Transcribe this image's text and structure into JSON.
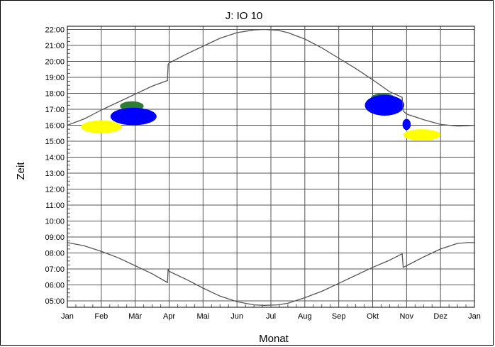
{
  "chart_data": {
    "type": "line",
    "title": "J: IO 10",
    "xlabel": "Monat",
    "ylabel": "Zeit",
    "x_ticks": [
      "Jan",
      "Feb",
      "Mär",
      "Apr",
      "Mai",
      "Jun",
      "Jul",
      "Aug",
      "Sep",
      "Okt",
      "Nov",
      "Dez",
      "Jan"
    ],
    "y_ticks": [
      "05:00",
      "06:00",
      "07:00",
      "08:00",
      "09:00",
      "10:00",
      "11:00",
      "12:00",
      "13:00",
      "14:00",
      "15:00",
      "16:00",
      "17:00",
      "18:00",
      "19:00",
      "20:00",
      "21:00",
      "22:00"
    ],
    "xlim": [
      0,
      12
    ],
    "ylim": [
      4.6,
      22.2
    ],
    "grid": true,
    "legend": "none",
    "series": [
      {
        "color": "#555555",
        "points": [
          [
            0,
            16.0
          ],
          [
            0.5,
            16.4
          ],
          [
            1,
            16.95
          ],
          [
            1.5,
            17.45
          ],
          [
            2,
            17.95
          ],
          [
            2.5,
            18.45
          ],
          [
            2.95,
            18.8
          ],
          [
            2.97,
            19.8
          ],
          [
            3,
            19.9
          ],
          [
            3.5,
            20.45
          ],
          [
            4,
            20.95
          ],
          [
            4.5,
            21.45
          ],
          [
            5,
            21.8
          ],
          [
            5.5,
            21.97
          ],
          [
            5.8,
            22.0
          ],
          [
            6.2,
            21.95
          ],
          [
            6.5,
            21.8
          ],
          [
            7,
            21.4
          ],
          [
            7.5,
            20.85
          ],
          [
            8,
            20.2
          ],
          [
            8.5,
            19.55
          ],
          [
            9,
            18.85
          ],
          [
            9.5,
            18.1
          ],
          [
            9.87,
            17.75
          ],
          [
            9.9,
            16.9
          ],
          [
            10,
            16.7
          ],
          [
            10.5,
            16.35
          ],
          [
            11,
            16.05
          ],
          [
            11.5,
            15.95
          ],
          [
            11.8,
            15.97
          ],
          [
            12,
            16.0
          ]
        ]
      },
      {
        "color": "#555555",
        "points": [
          [
            0,
            8.65
          ],
          [
            0.5,
            8.45
          ],
          [
            1,
            8.1
          ],
          [
            1.5,
            7.7
          ],
          [
            2,
            7.2
          ],
          [
            2.5,
            6.7
          ],
          [
            2.95,
            6.15
          ],
          [
            2.97,
            7.0
          ],
          [
            3,
            6.85
          ],
          [
            3.5,
            6.35
          ],
          [
            4,
            5.8
          ],
          [
            4.5,
            5.3
          ],
          [
            5,
            4.95
          ],
          [
            5.5,
            4.75
          ],
          [
            5.8,
            4.72
          ],
          [
            6.2,
            4.75
          ],
          [
            6.5,
            4.85
          ],
          [
            7,
            5.2
          ],
          [
            7.5,
            5.6
          ],
          [
            8,
            6.1
          ],
          [
            8.5,
            6.6
          ],
          [
            9,
            7.1
          ],
          [
            9.5,
            7.55
          ],
          [
            9.87,
            7.95
          ],
          [
            9.9,
            7.1
          ],
          [
            10,
            7.2
          ],
          [
            10.5,
            7.75
          ],
          [
            11,
            8.25
          ],
          [
            11.5,
            8.6
          ],
          [
            11.8,
            8.65
          ],
          [
            12,
            8.65
          ]
        ]
      }
    ],
    "regions": [
      {
        "color": "#ffff00",
        "cx": 1.0,
        "cy": 15.9,
        "rx": 0.6,
        "ry": 0.4
      },
      {
        "color": "#2e7d32",
        "cx": 1.9,
        "cy": 17.2,
        "rx": 0.35,
        "ry": 0.3
      },
      {
        "color": "#0000ff",
        "cx": 1.95,
        "cy": 16.55,
        "rx": 0.68,
        "ry": 0.55
      },
      {
        "color": "#2e7d32",
        "cx": 9.3,
        "cy": 17.7,
        "rx": 0.35,
        "ry": 0.3
      },
      {
        "color": "#0000ff",
        "cx": 9.35,
        "cy": 17.25,
        "rx": 0.58,
        "ry": 0.65
      },
      {
        "color": "#0000ff",
        "cx": 10.0,
        "cy": 16.05,
        "rx": 0.12,
        "ry": 0.35
      },
      {
        "color": "#ffff00",
        "cx": 10.45,
        "cy": 15.4,
        "rx": 0.55,
        "ry": 0.35
      }
    ]
  }
}
